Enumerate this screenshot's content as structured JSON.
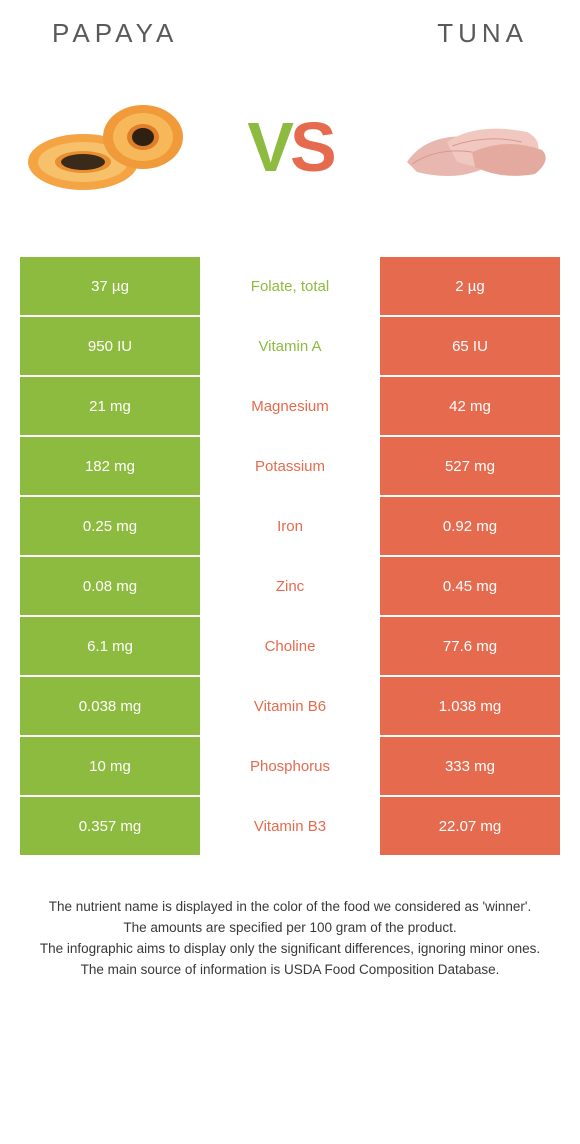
{
  "header": {
    "left": "PAPAYA",
    "right": "TUNA"
  },
  "vs": {
    "v": "V",
    "s": "S"
  },
  "colors": {
    "papaya_bg": "#8dbb3f",
    "tuna_bg": "#e66a4e",
    "papaya_text": "#8dbb3f",
    "tuna_text": "#e66a4e",
    "neutral_left": "#f4f4f4",
    "neutral_right": "#f4f4f4",
    "neutral_text": "#666666"
  },
  "rows": [
    {
      "left": "37 µg",
      "mid": "Folate, total",
      "right": "2 µg",
      "winner": "left"
    },
    {
      "left": "950 IU",
      "mid": "Vitamin A",
      "right": "65 IU",
      "winner": "left"
    },
    {
      "left": "21 mg",
      "mid": "Magnesium",
      "right": "42 mg",
      "winner": "right"
    },
    {
      "left": "182 mg",
      "mid": "Potassium",
      "right": "527 mg",
      "winner": "right"
    },
    {
      "left": "0.25 mg",
      "mid": "Iron",
      "right": "0.92 mg",
      "winner": "right"
    },
    {
      "left": "0.08 mg",
      "mid": "Zinc",
      "right": "0.45 mg",
      "winner": "right"
    },
    {
      "left": "6.1 mg",
      "mid": "Choline",
      "right": "77.6 mg",
      "winner": "right"
    },
    {
      "left": "0.038 mg",
      "mid": "Vitamin B6",
      "right": "1.038 mg",
      "winner": "right"
    },
    {
      "left": "10 mg",
      "mid": "Phosphorus",
      "right": "333 mg",
      "winner": "right"
    },
    {
      "left": "0.357 mg",
      "mid": "Vitamin B3",
      "right": "22.07 mg",
      "winner": "right"
    }
  ],
  "footer": {
    "l1": "The nutrient name is displayed in the color of the food we considered as 'winner'.",
    "l2": "The amounts are specified per 100 gram of the product.",
    "l3": "The infographic aims to display only the significant differences, ignoring minor ones.",
    "l4": "The main source of information is USDA Food Composition Database."
  }
}
